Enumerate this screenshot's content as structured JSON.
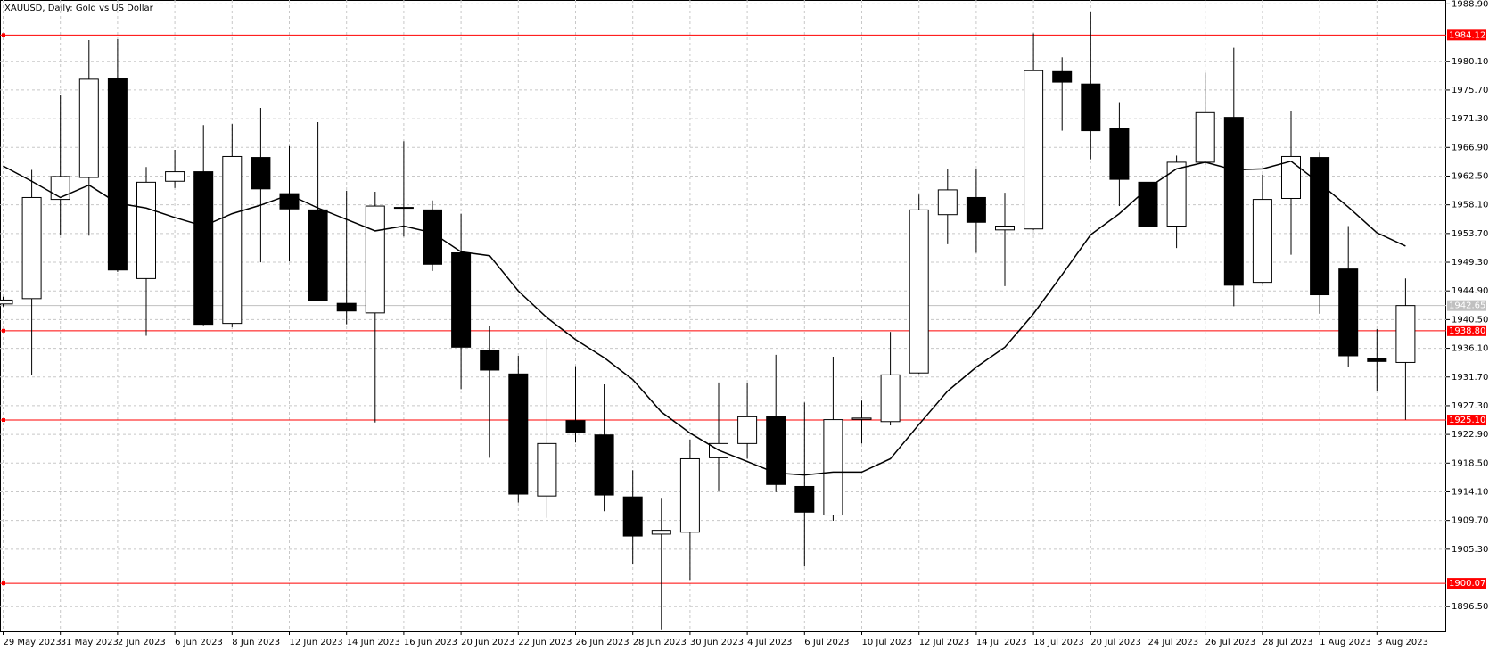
{
  "chart_data": {
    "type": "candlestick",
    "title": "XAUUSD, Daily:  Gold vs US Dollar",
    "categories": [
      "29 May 2023",
      null,
      "31 May 2023",
      null,
      "2 Jun 2023",
      null,
      "6 Jun 2023",
      null,
      "8 Jun 2023",
      null,
      "12 Jun 2023",
      null,
      "14 Jun 2023",
      null,
      "16 Jun 2023",
      null,
      "20 Jun 2023",
      null,
      "22 Jun 2023",
      null,
      "26 Jun 2023",
      null,
      "28 Jun 2023",
      null,
      "30 Jun 2023",
      null,
      "4 Jul 2023",
      null,
      "6 Jul 2023",
      null,
      "10 Jul 2023",
      null,
      "12 Jul 2023",
      null,
      "14 Jul 2023",
      null,
      "18 Jul 2023",
      null,
      "20 Jul 2023",
      null,
      "24 Jul 2023",
      null,
      "26 Jul 2023",
      null,
      "28 Jul 2023",
      null,
      "1 Aug 2023",
      null,
      "3 Aug 2023",
      null
    ],
    "open": [
      1942.9,
      1943.72,
      1958.93,
      1962.29,
      1977.5,
      1946.79,
      1961.71,
      1963.17,
      1939.92,
      1965.36,
      1959.81,
      1957.32,
      1942.99,
      1941.53,
      1957.6,
      1957.32,
      1950.74,
      1935.83,
      1932.17,
      1913.46,
      1925.01,
      1922.82,
      1913.32,
      1907.61,
      1907.91,
      1919.31,
      1921.5,
      1925.6,
      1914.92,
      1910.54,
      1925.2,
      1924.86,
      1932.32,
      1956.59,
      1959.22,
      1954.25,
      1954.4,
      1978.52,
      1976.62,
      1969.75,
      1961.56,
      1954.84,
      1964.63,
      1971.5,
      1946.21,
      1959.08,
      1965.36,
      1948.26,
      1934.52,
      1933.93
    ],
    "high": [
      1944.0,
      1963.46,
      1974.87,
      1983.34,
      1983.49,
      1963.9,
      1966.53,
      1970.33,
      1970.48,
      1972.96,
      1967.12,
      1970.77,
      1960.25,
      1960.1,
      1967.85,
      1958.78,
      1956.74,
      1939.48,
      1934.95,
      1937.58,
      1933.35,
      1930.57,
      1917.41,
      1913.17,
      1922.09,
      1930.86,
      1930.71,
      1935.1,
      1927.79,
      1934.81,
      1928.08,
      1938.61,
      1959.66,
      1963.61,
      1963.61,
      1959.95,
      1984.37,
      1980.71,
      1987.58,
      1973.84,
      1963.9,
      1965.65,
      1978.37,
      1982.17,
      1962.73,
      1972.53,
      1966.09,
      1954.84,
      1939.05,
      1946.8
    ],
    "low": [
      1942.5,
      1932.03,
      1953.52,
      1953.37,
      1947.82,
      1938.02,
      1960.68,
      1939.63,
      1939.34,
      1949.28,
      1949.43,
      1943.29,
      1939.78,
      1924.72,
      1953.23,
      1947.96,
      1929.84,
      1919.31,
      1912.44,
      1910.1,
      1921.65,
      1911.12,
      1902.94,
      1893.0,
      1900.6,
      1914.19,
      1919.16,
      1914.05,
      1902.64,
      1909.66,
      1921.5,
      1924.28,
      1932.17,
      1952.06,
      1950.74,
      1945.63,
      1954.25,
      1969.46,
      1965.07,
      1957.91,
      1953.37,
      1951.47,
      1964.19,
      1942.56,
      1946.07,
      1950.45,
      1941.39,
      1933.2,
      1929.54,
      1925.16
    ],
    "close": [
      1943.5,
      1959.22,
      1962.44,
      1977.35,
      1948.11,
      1961.56,
      1963.17,
      1939.78,
      1965.51,
      1960.54,
      1957.47,
      1943.43,
      1941.82,
      1957.91,
      1957.7,
      1948.99,
      1936.27,
      1932.76,
      1913.75,
      1921.5,
      1923.26,
      1913.61,
      1907.32,
      1908.2,
      1919.16,
      1921.5,
      1925.6,
      1915.22,
      1910.98,
      1925.16,
      1925.4,
      1932.03,
      1957.32,
      1960.39,
      1955.42,
      1954.84,
      1978.67,
      1976.91,
      1969.46,
      1962.0,
      1954.84,
      1964.63,
      1972.23,
      1945.77,
      1958.93,
      1965.51,
      1944.31,
      1934.95,
      1934.08,
      1942.65
    ],
    "up_color": "#ffffff",
    "down_color": "#000000",
    "ma": {
      "color": "#000000",
      "values": [
        1964.05,
        1961.71,
        1959.22,
        1961.12,
        1958.34,
        1957.61,
        1956.15,
        1954.84,
        1956.74,
        1958.05,
        1959.66,
        1957.61,
        1955.86,
        1954.1,
        1954.84,
        1953.81,
        1950.89,
        1950.3,
        1944.89,
        1940.8,
        1937.44,
        1934.66,
        1931.3,
        1926.33,
        1923.11,
        1920.48,
        1918.73,
        1916.97,
        1916.68,
        1917.12,
        1917.12,
        1919.16,
        1924.43,
        1929.54,
        1933.2,
        1936.27,
        1941.39,
        1947.38,
        1953.52,
        1956.74,
        1960.68,
        1963.61,
        1964.63,
        1963.46,
        1963.61,
        1964.78,
        1961.41,
        1957.76,
        1953.81,
        1951.77
      ]
    },
    "levels": {
      "color": "#ff0000",
      "values": [
        1984.12,
        {
          "value": 1938.8,
          "label": "1938.80"
        },
        {
          "value": 1925.1,
          "label": "1925.10"
        },
        1900.07
      ]
    },
    "current_price": {
      "color": "#c0c0c0",
      "value": 1942.65
    },
    "ylim": [
      1892.7,
      1989.5
    ],
    "yticks": [
      {
        "value": 1988.9,
        "label": "1988.90"
      },
      {
        "value": 1980.1,
        "label": "1980.10"
      },
      {
        "value": 1975.7,
        "label": "1975.70"
      },
      {
        "value": 1971.3,
        "label": "1971.30"
      },
      {
        "value": 1966.9,
        "label": "1966.90"
      },
      {
        "value": 1962.5,
        "label": "1962.50"
      },
      {
        "value": 1958.1,
        "label": "1958.10"
      },
      {
        "value": 1953.7,
        "label": "1953.70"
      },
      {
        "value": 1949.3,
        "label": "1949.30"
      },
      {
        "value": 1944.9,
        "label": "1944.90"
      },
      {
        "value": 1940.5,
        "label": "1940.50"
      },
      {
        "value": 1936.1,
        "label": "1936.10"
      },
      {
        "value": 1931.7,
        "label": "1931.70"
      },
      {
        "value": 1927.3,
        "label": "1927.30"
      },
      {
        "value": 1922.9,
        "label": "1922.90"
      },
      {
        "value": 1918.5,
        "label": "1918.50"
      },
      {
        "value": 1914.1,
        "label": "1914.10"
      },
      {
        "value": 1909.7,
        "label": "1909.70"
      },
      {
        "value": 1905.3,
        "label": "1905.30"
      },
      {
        "value": 1896.5,
        "label": "1896.50"
      }
    ],
    "grid": true
  }
}
